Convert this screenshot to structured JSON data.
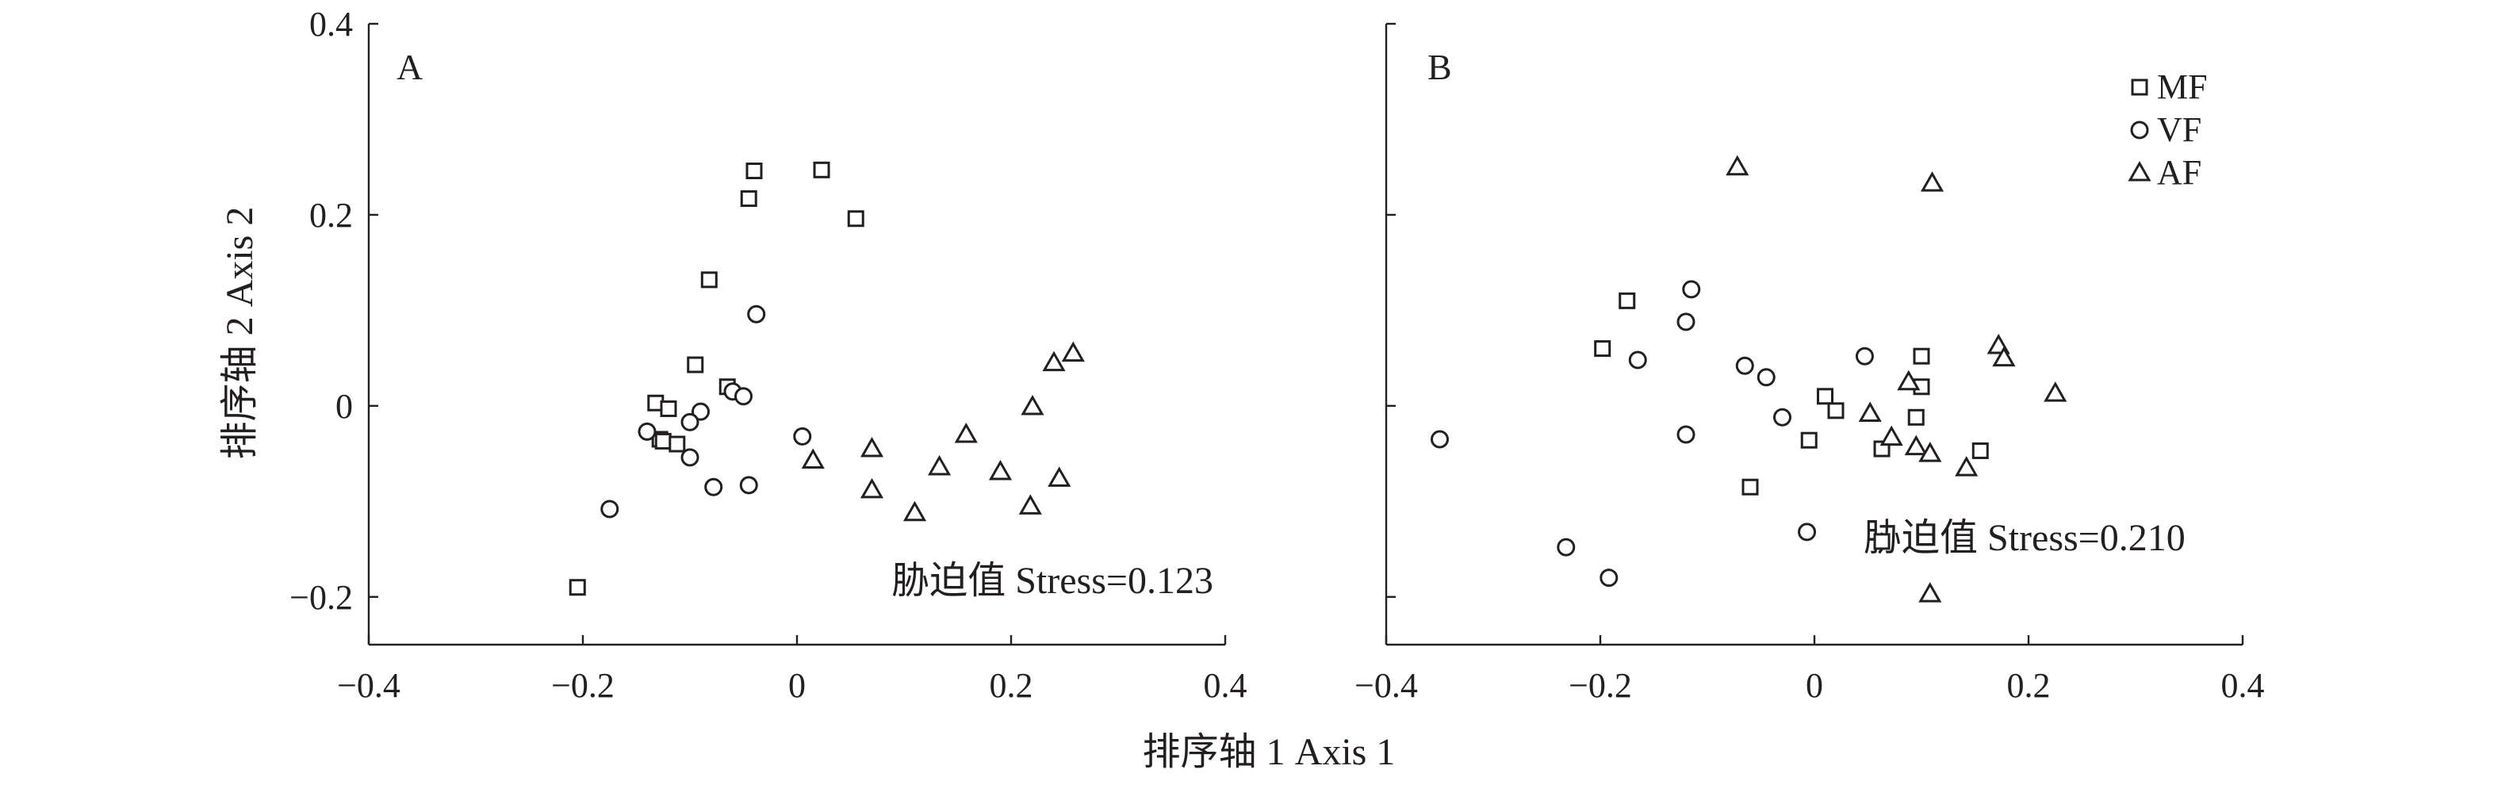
{
  "colors": {
    "ink": "#231f20",
    "background": "#ffffff"
  },
  "axis_titles": {
    "x": "排序轴 1 Axis 1",
    "y": "排序轴 2 Axis 2"
  },
  "legend": {
    "placement": "top-right of panel B",
    "entries": [
      {
        "label": "MF",
        "marker": "square"
      },
      {
        "label": "VF",
        "marker": "circle"
      },
      {
        "label": "AF",
        "marker": "triangle"
      }
    ]
  },
  "chart_data": [
    {
      "type": "scatter",
      "panel": "A",
      "stress_label": "胁迫值 Stress=0.123",
      "xlim": [
        -0.4,
        0.4
      ],
      "ylim": [
        -0.25,
        0.4
      ],
      "x_ticks": [
        {
          "v": -0.4,
          "label": "−0.4"
        },
        {
          "v": -0.2,
          "label": "−0.2"
        },
        {
          "v": 0,
          "label": "0"
        },
        {
          "v": 0.2,
          "label": "0.2"
        },
        {
          "v": 0.4,
          "label": "0.4"
        }
      ],
      "y_ticks": [
        {
          "v": 0.4,
          "label": "0.4"
        },
        {
          "v": 0.2,
          "label": "0.2"
        },
        {
          "v": 0,
          "label": "0"
        },
        {
          "v": -0.2,
          "label": "−0.2"
        }
      ],
      "grid": false,
      "series": [
        {
          "name": "MF",
          "marker": "square",
          "points": [
            [
              -0.04,
              0.246
            ],
            [
              0.023,
              0.247
            ],
            [
              -0.045,
              0.217
            ],
            [
              0.055,
              0.196
            ],
            [
              -0.082,
              0.132
            ],
            [
              -0.095,
              0.043
            ],
            [
              -0.065,
              0.02
            ],
            [
              -0.132,
              0.003
            ],
            [
              -0.12,
              -0.003
            ],
            [
              -0.128,
              -0.035
            ],
            [
              -0.125,
              -0.037
            ],
            [
              -0.112,
              -0.04
            ],
            [
              -0.205,
              -0.19
            ]
          ]
        },
        {
          "name": "VF",
          "marker": "circle",
          "points": [
            [
              -0.038,
              0.096
            ],
            [
              -0.06,
              0.015
            ],
            [
              -0.05,
              0.01
            ],
            [
              -0.09,
              -0.006
            ],
            [
              -0.1,
              -0.017
            ],
            [
              -0.14,
              -0.027
            ],
            [
              -0.1,
              -0.054
            ],
            [
              0.005,
              -0.032
            ],
            [
              -0.078,
              -0.085
            ],
            [
              -0.045,
              -0.083
            ],
            [
              -0.175,
              -0.108
            ]
          ]
        },
        {
          "name": "AF",
          "marker": "triangle",
          "points": [
            [
              0.258,
              0.055
            ],
            [
              0.24,
              0.045
            ],
            [
              0.22,
              -0.001
            ],
            [
              0.158,
              -0.03
            ],
            [
              0.07,
              -0.045
            ],
            [
              0.015,
              -0.057
            ],
            [
              0.133,
              -0.064
            ],
            [
              0.19,
              -0.069
            ],
            [
              0.245,
              -0.076
            ],
            [
              0.07,
              -0.088
            ],
            [
              0.11,
              -0.112
            ],
            [
              0.218,
              -0.105
            ]
          ]
        }
      ]
    },
    {
      "type": "scatter",
      "panel": "B",
      "stress_label": "胁迫值 Stress=0.210",
      "xlim": [
        -0.4,
        0.4
      ],
      "ylim": [
        -0.25,
        0.4
      ],
      "x_ticks": [
        {
          "v": -0.4,
          "label": "−0.4"
        },
        {
          "v": -0.2,
          "label": "−0.2"
        },
        {
          "v": 0,
          "label": "0"
        },
        {
          "v": 0.2,
          "label": "0.2"
        },
        {
          "v": 0.4,
          "label": "0.4"
        }
      ],
      "y_ticks": [
        {
          "v": 0.4,
          "label": ""
        },
        {
          "v": 0.2,
          "label": ""
        },
        {
          "v": 0,
          "label": ""
        },
        {
          "v": -0.2,
          "label": ""
        }
      ],
      "grid": false,
      "series": [
        {
          "name": "MF",
          "marker": "square",
          "points": [
            [
              -0.175,
              0.11
            ],
            [
              -0.198,
              0.06
            ],
            [
              0.1,
              0.052
            ],
            [
              0.01,
              0.01
            ],
            [
              0.1,
              0.02
            ],
            [
              0.02,
              -0.005
            ],
            [
              0.095,
              -0.012
            ],
            [
              -0.005,
              -0.036
            ],
            [
              0.063,
              -0.045
            ],
            [
              0.155,
              -0.047
            ],
            [
              -0.06,
              -0.085
            ],
            [
              0.063,
              -0.142
            ]
          ]
        },
        {
          "name": "VF",
          "marker": "circle",
          "points": [
            [
              -0.115,
              0.122
            ],
            [
              -0.12,
              0.088
            ],
            [
              -0.165,
              0.048
            ],
            [
              0.047,
              0.052
            ],
            [
              -0.065,
              0.042
            ],
            [
              -0.045,
              0.03
            ],
            [
              -0.03,
              -0.012
            ],
            [
              -0.12,
              -0.03
            ],
            [
              -0.35,
              -0.035
            ],
            [
              -0.007,
              -0.132
            ],
            [
              -0.232,
              -0.148
            ],
            [
              -0.192,
              -0.18
            ]
          ]
        },
        {
          "name": "AF",
          "marker": "triangle",
          "points": [
            [
              -0.072,
              0.25
            ],
            [
              0.11,
              0.233
            ],
            [
              0.172,
              0.063
            ],
            [
              0.177,
              0.05
            ],
            [
              0.225,
              0.013
            ],
            [
              0.088,
              0.025
            ],
            [
              0.052,
              -0.008
            ],
            [
              0.072,
              -0.033
            ],
            [
              0.095,
              -0.043
            ],
            [
              0.108,
              -0.05
            ],
            [
              0.142,
              -0.065
            ],
            [
              0.108,
              -0.197
            ]
          ]
        }
      ]
    }
  ]
}
